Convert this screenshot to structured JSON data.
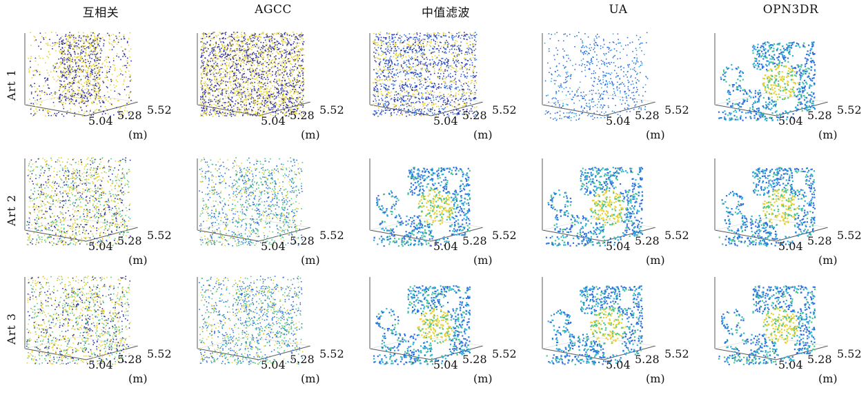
{
  "columns": [
    "互相关",
    "AGCC",
    "中值滤波",
    "UA",
    "OPN3DR"
  ],
  "rows": [
    "Art 1",
    "Art 2",
    "Art 3"
  ],
  "axis": {
    "ticks": [
      "5.04",
      "5.28",
      "5.52"
    ],
    "unit": "(m)"
  },
  "colors": {
    "dark": "#2b2fa0",
    "blue": "#2f6fe0",
    "cyan": "#2ab3d6",
    "green": "#4cc48a",
    "yellow": "#e6d235",
    "axis": "#555555"
  },
  "panels": [
    [
      {
        "style": "noise"
      },
      {
        "style": "dense"
      },
      {
        "style": "stripes"
      },
      {
        "style": "sparse"
      },
      {
        "style": "clean"
      }
    ],
    [
      {
        "style": "noisy-structure"
      },
      {
        "style": "mid-structure"
      },
      {
        "style": "clean"
      },
      {
        "style": "clean"
      },
      {
        "style": "clean"
      }
    ],
    [
      {
        "style": "noisy-structure"
      },
      {
        "style": "mid-structure"
      },
      {
        "style": "clean"
      },
      {
        "style": "clean"
      },
      {
        "style": "clean"
      }
    ]
  ]
}
